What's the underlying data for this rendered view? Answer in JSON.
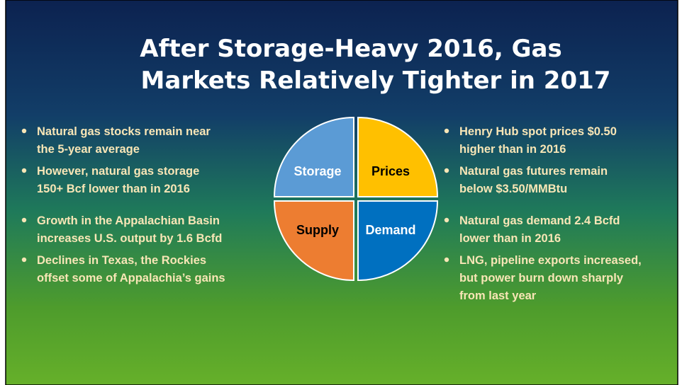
{
  "title": [
    "After Storage-Heavy 2016, Gas",
    "Markets Relatively Tighter in 2017"
  ],
  "quadrants": [
    "Storage",
    "Prices",
    "Supply",
    "Demand"
  ],
  "bullets": {
    "left": [
      [
        "Natural gas stocks remain near",
        "the 5-year average"
      ],
      [
        "However, natural gas storage",
        "150+ Bcf lower than in 2016"
      ],
      [
        "Growth in the Appalachian Basin",
        "increases U.S. output by 1.6 Bcfd"
      ],
      [
        "Declines in Texas, the Rockies",
        "offset some of Appalachia’s gains"
      ]
    ],
    "right": [
      [
        "Henry Hub spot prices $0.50",
        "higher than in 2016"
      ],
      [
        "Natural gas futures remain",
        "below $3.50/MMBtu"
      ],
      [
        "Natural gas demand 2.4 Bcfd",
        "lower than in 2016"
      ],
      [
        "LNG, pipeline exports increased,",
        "but power burn down sharply",
        "from last year"
      ]
    ]
  }
}
